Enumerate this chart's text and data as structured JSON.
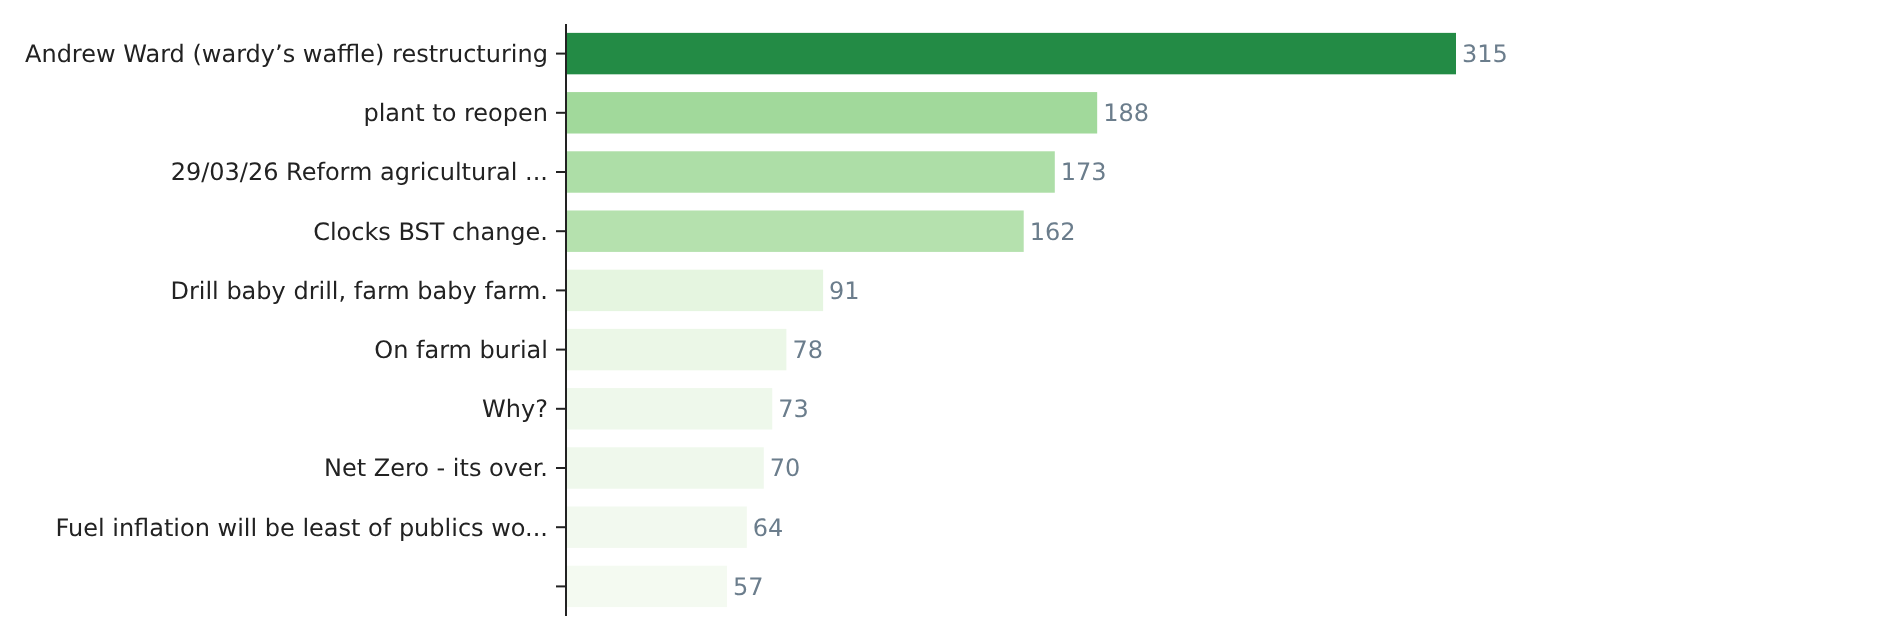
{
  "chart_data": {
    "type": "bar",
    "orientation": "horizontal",
    "data_labels": true,
    "categories": [
      "Andrew Ward (wardy’s waffle) restructuring",
      "plant to reopen",
      "29/03/26 Reform agricultural ...",
      "Clocks BST change.",
      "Drill baby drill, farm baby farm.",
      "On farm burial",
      "Why?",
      "Net Zero - its over.",
      "Fuel inflation will be least of publics wo...",
      null
    ],
    "values": [
      315,
      188,
      173,
      162,
      91,
      78,
      73,
      70,
      64,
      57
    ],
    "colors": [
      "#238b45",
      "#a1d99b",
      "#addea7",
      "#b5e1ae",
      "#e5f5e0",
      "#ebf7e7",
      "#eef8eb",
      "#eff8ec",
      "#f2f9ef",
      "#f4faf1"
    ],
    "xlim": [
      0,
      315
    ]
  }
}
